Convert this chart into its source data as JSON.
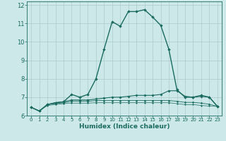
{
  "background_color": "#cce8e8",
  "grid_color": "#aacccc",
  "line_color": "#1a6b60",
  "xlabel": "Humidex (Indice chaleur)",
  "xlim": [
    -0.5,
    23.5
  ],
  "ylim": [
    6,
    12.2
  ],
  "xticks": [
    0,
    1,
    2,
    3,
    4,
    5,
    6,
    7,
    8,
    9,
    10,
    11,
    12,
    13,
    14,
    15,
    16,
    17,
    18,
    19,
    20,
    21,
    22,
    23
  ],
  "yticks": [
    6,
    7,
    8,
    9,
    10,
    11,
    12
  ],
  "series": [
    {
      "x": [
        0,
        1,
        2,
        3,
        4,
        5,
        6,
        7,
        8,
        9,
        10,
        11,
        12,
        13,
        14,
        15,
        16,
        17,
        18,
        19,
        20,
        21,
        22,
        23
      ],
      "y": [
        6.45,
        6.25,
        6.6,
        6.7,
        6.75,
        7.15,
        7.0,
        7.15,
        8.0,
        9.6,
        11.1,
        10.85,
        11.65,
        11.65,
        11.75,
        11.35,
        10.9,
        9.6,
        7.4,
        7.0,
        7.0,
        7.1,
        7.0,
        6.5
      ],
      "marker": "D",
      "marker_size": 2.0,
      "linewidth": 1.0,
      "linestyle": "-"
    },
    {
      "x": [
        0,
        1,
        2,
        3,
        4,
        5,
        6,
        7,
        8,
        9,
        10,
        11,
        12,
        13,
        14,
        15,
        16,
        17,
        18,
        19,
        20,
        21,
        22,
        23
      ],
      "y": [
        6.45,
        6.25,
        6.6,
        6.7,
        6.75,
        6.85,
        6.85,
        6.85,
        6.9,
        6.95,
        7.0,
        7.0,
        7.05,
        7.1,
        7.1,
        7.1,
        7.15,
        7.35,
        7.35,
        7.05,
        7.0,
        7.05,
        7.0,
        6.5
      ],
      "marker": "D",
      "marker_size": 1.8,
      "linewidth": 0.8,
      "linestyle": "-"
    },
    {
      "x": [
        0,
        1,
        2,
        3,
        4,
        5,
        6,
        7,
        8,
        9,
        10,
        11,
        12,
        13,
        14,
        15,
        16,
        17,
        18,
        19,
        20,
        21,
        22,
        23
      ],
      "y": [
        6.45,
        6.25,
        6.6,
        6.65,
        6.7,
        6.78,
        6.78,
        6.78,
        6.82,
        6.82,
        6.82,
        6.82,
        6.82,
        6.82,
        6.82,
        6.82,
        6.82,
        6.82,
        6.78,
        6.72,
        6.72,
        6.68,
        6.62,
        6.5
      ],
      "marker": "D",
      "marker_size": 1.5,
      "linewidth": 0.6,
      "linestyle": "-"
    },
    {
      "x": [
        0,
        1,
        2,
        3,
        4,
        5,
        6,
        7,
        8,
        9,
        10,
        11,
        12,
        13,
        14,
        15,
        16,
        17,
        18,
        19,
        20,
        21,
        22,
        23
      ],
      "y": [
        6.45,
        6.25,
        6.55,
        6.6,
        6.65,
        6.68,
        6.68,
        6.68,
        6.7,
        6.7,
        6.7,
        6.7,
        6.7,
        6.7,
        6.7,
        6.7,
        6.7,
        6.7,
        6.65,
        6.6,
        6.6,
        6.55,
        6.52,
        6.5
      ],
      "marker": "D",
      "marker_size": 1.2,
      "linewidth": 0.5,
      "linestyle": "-"
    }
  ]
}
